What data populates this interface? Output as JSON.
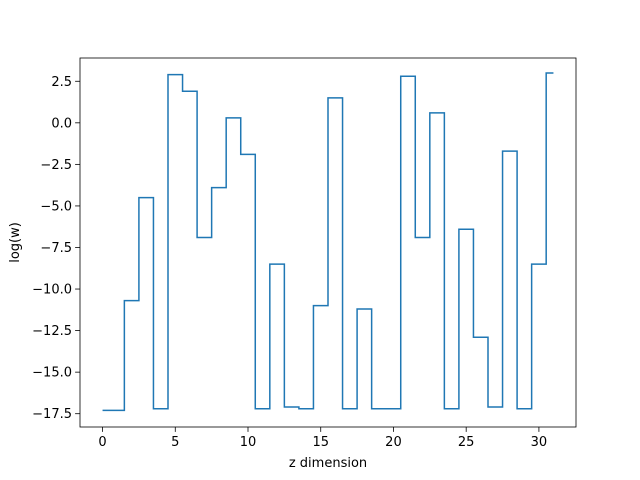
{
  "chart_data": {
    "type": "line",
    "drawstyle": "steps-mid",
    "title": "",
    "xlabel": "z dimension",
    "ylabel": "log(w)",
    "xlim": [
      -1.55,
      32.55
    ],
    "ylim": [
      -18.3,
      3.9
    ],
    "xticks": [
      0,
      5,
      10,
      15,
      20,
      25,
      30
    ],
    "yticks": [
      -17.5,
      -15.0,
      -12.5,
      -10.0,
      -7.5,
      -5.0,
      -2.5,
      0.0,
      2.5
    ],
    "ytick_labels": [
      "−17.5",
      "−15.0",
      "−12.5",
      "−10.0",
      "−7.5",
      "−5.0",
      "−2.5",
      "0.0",
      "2.5"
    ],
    "grid": false,
    "color": "#1f77b4",
    "series": [
      {
        "x": [
          0,
          1,
          2,
          3,
          4,
          5,
          6,
          7,
          8,
          9,
          10,
          11,
          12,
          13,
          14,
          15,
          16,
          17,
          18,
          19,
          20,
          21,
          22,
          23,
          24,
          25,
          26,
          27,
          28,
          29,
          30,
          31
        ],
        "values": [
          -17.3,
          -17.3,
          -10.7,
          -4.5,
          -17.2,
          2.9,
          1.9,
          -6.9,
          -3.9,
          0.3,
          -1.9,
          -17.2,
          -8.5,
          -17.1,
          -17.2,
          -11.0,
          1.5,
          -17.2,
          -11.2,
          -17.2,
          -17.2,
          2.8,
          -6.9,
          0.6,
          -17.2,
          -6.4,
          -12.9,
          -17.1,
          -1.7,
          -17.2,
          -8.5,
          3.0
        ]
      }
    ]
  }
}
